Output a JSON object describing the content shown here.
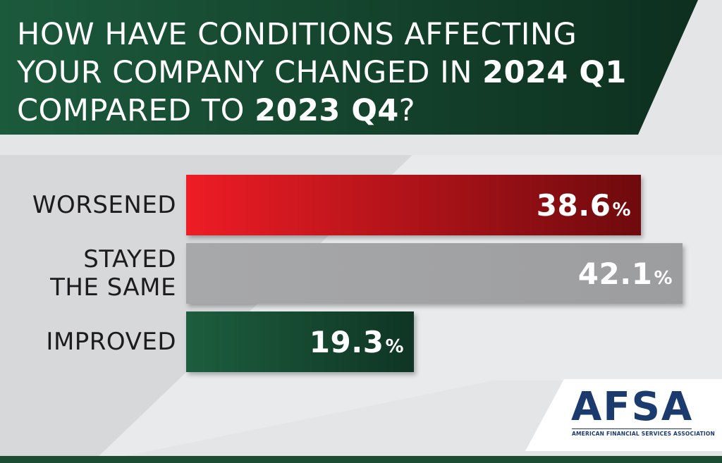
{
  "chart_data": {
    "type": "bar",
    "orientation": "horizontal",
    "title": {
      "line1": "HOW HAVE CONDITIONS AFFECTING",
      "line2_plain": "YOUR COMPANY CHANGED IN ",
      "line2_bold": "2024 Q1",
      "line3_plain": "COMPARED TO ",
      "line3_bold": "2023 Q4",
      "line3_end": "?"
    },
    "categories": [
      "WORSENED",
      "STAYED THE SAME",
      "IMPROVED"
    ],
    "category_lines": [
      [
        "WORSENED"
      ],
      [
        "STAYED",
        "THE SAME"
      ],
      [
        "IMPROVED"
      ]
    ],
    "values": [
      38.6,
      42.1,
      19.3
    ],
    "value_labels": [
      "38.6",
      "42.1",
      "19.3"
    ],
    "unit": "%",
    "colors": [
      "#c8161d",
      "#a3a4a6",
      "#1d5a3c"
    ],
    "xlim": [
      0,
      42.1
    ],
    "grid": false,
    "legend": "none"
  },
  "branding": {
    "logo_text": "AFSA",
    "logo_subtitle": "AMERICAN FINANCIAL SERVICES ASSOCIATION",
    "logo_color": "#1b3a6e"
  }
}
